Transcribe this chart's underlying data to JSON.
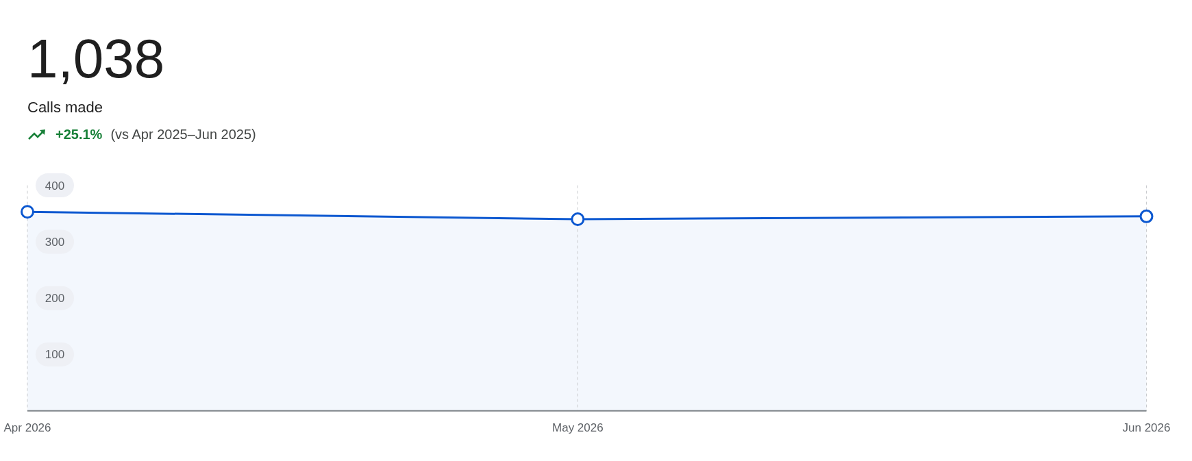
{
  "chart_data": {
    "type": "area",
    "title": "1,038",
    "subtitle": "Calls made",
    "annotations": [
      "+25.1%",
      "(vs Apr 2025–Jun 2025)"
    ],
    "x": [
      "2026-04",
      "2026-05",
      "2026-06"
    ],
    "series": [
      {
        "color": "#0b57d0",
        "values": [
          353,
          340,
          345
        ]
      }
    ],
    "xlim": [
      "2026-04",
      "2026-06"
    ],
    "xticks": [
      {
        "value": "2026-04",
        "label": "Apr 2026"
      },
      {
        "value": "2026-05",
        "label": "May 2026"
      },
      {
        "value": "2026-06",
        "label": "Jun 2026"
      }
    ],
    "ylim": [
      0,
      400
    ],
    "yticks": [
      100,
      200,
      300,
      400
    ],
    "grid": "x",
    "marker": "circle",
    "line_style": "solid"
  }
}
